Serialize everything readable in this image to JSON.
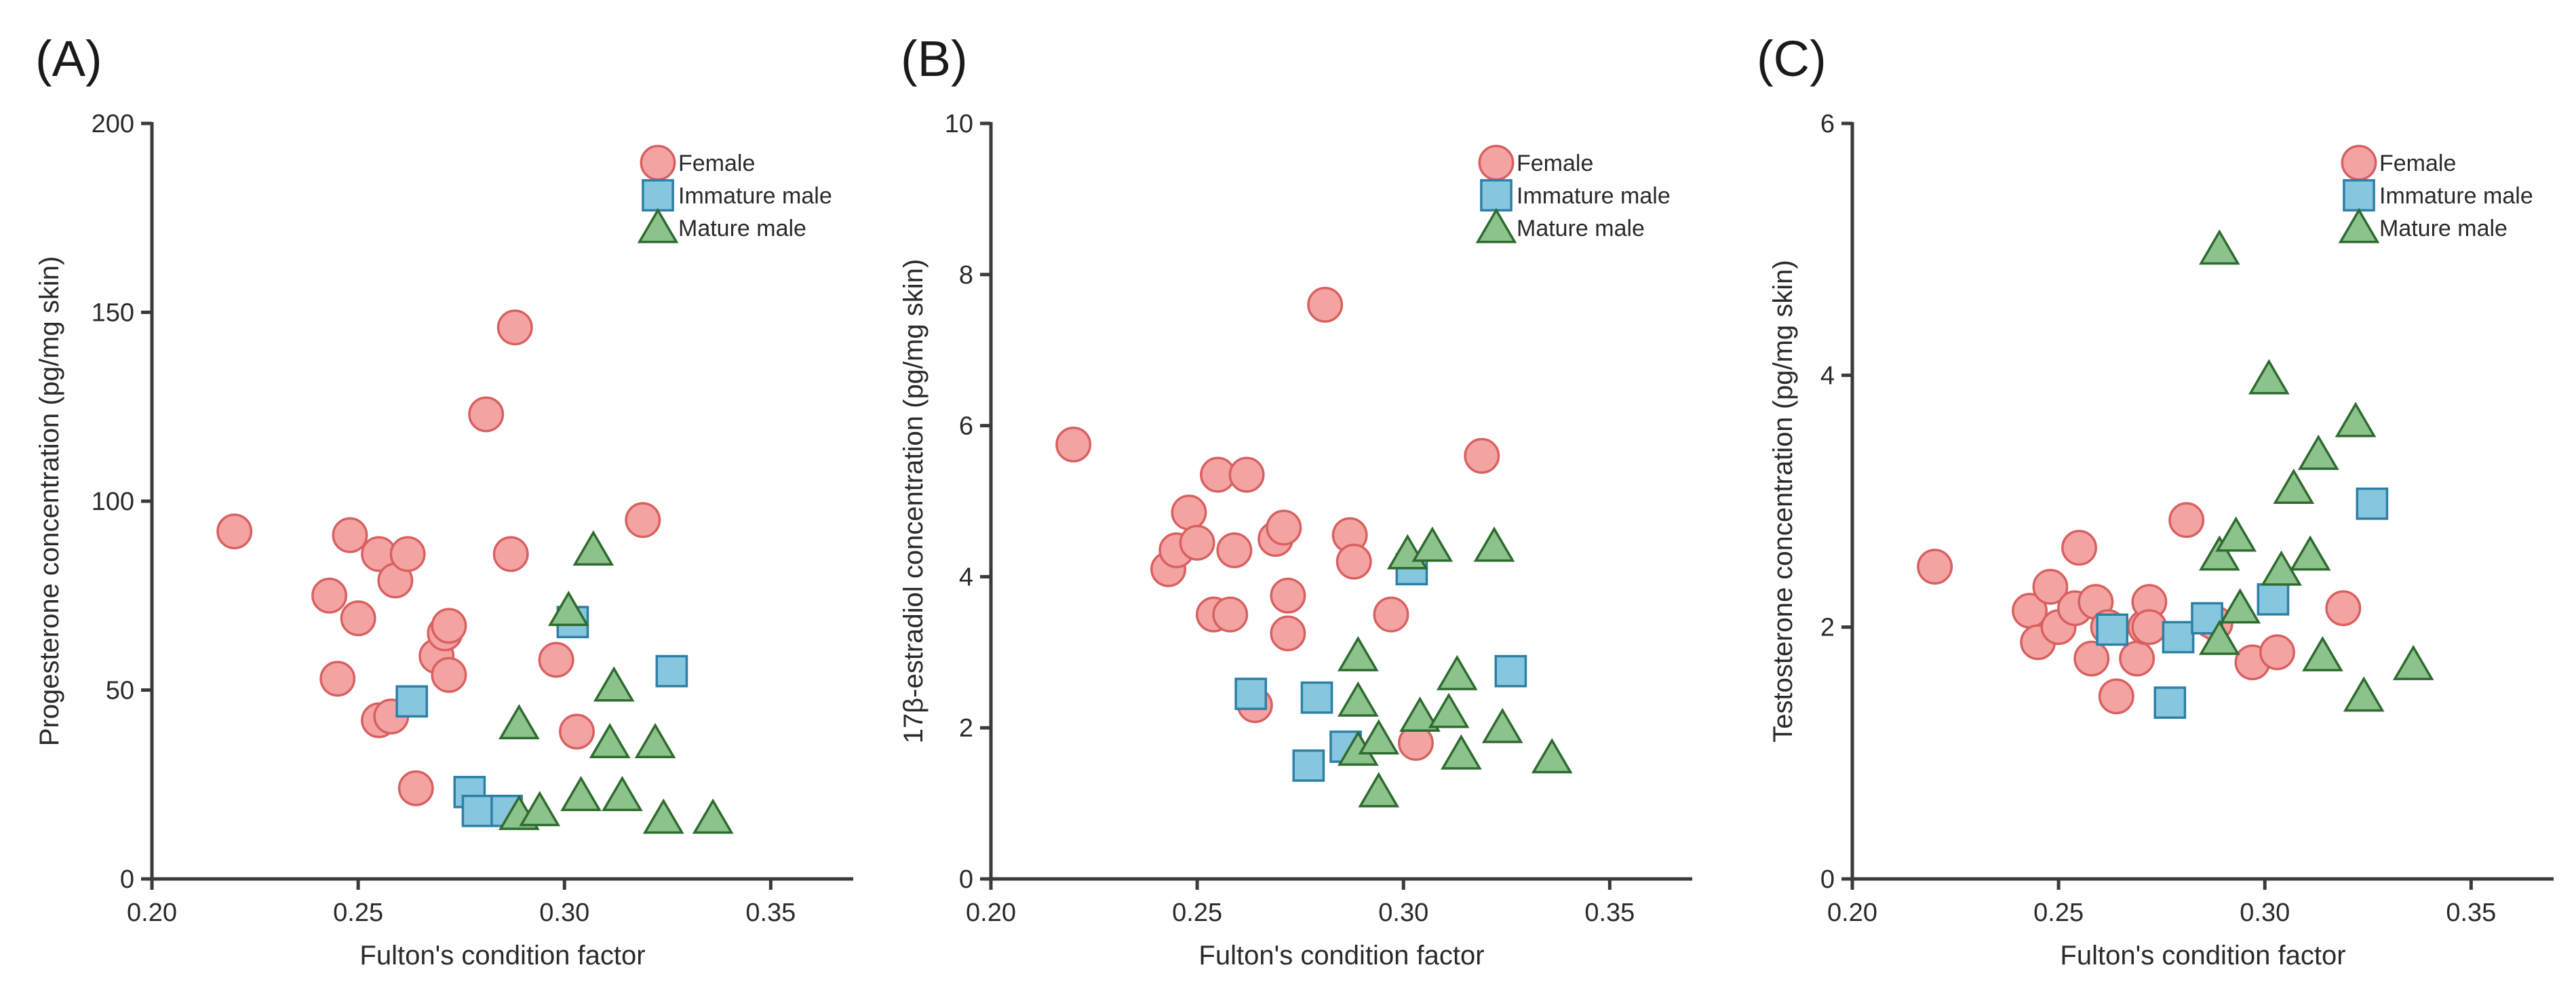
{
  "styles": {
    "Female": {
      "marker": "circle",
      "fill": "#f4a3a3",
      "stroke": "#d96060"
    },
    "Immature male": {
      "marker": "square",
      "fill": "#86c7df",
      "stroke": "#2e7fa6"
    },
    "Mature male": {
      "marker": "triangle",
      "fill": "#8cc28c",
      "stroke": "#2e6b2e"
    }
  },
  "chart_data": [
    {
      "panel": "(A)",
      "type": "scatter",
      "xlabel": "Fulton's condition factor",
      "ylabel": "Progesterone concentration (pg/mg skin)",
      "xlim": [
        0.2,
        0.37
      ],
      "ylim": [
        0,
        200
      ],
      "xticks": [
        "0.20",
        "0.25",
        "0.30",
        "0.35"
      ],
      "yticks": [
        "0",
        "50",
        "100",
        "150",
        "200"
      ],
      "legend": [
        "Female",
        "Immature male",
        "Mature male"
      ],
      "series": [
        {
          "name": "Female",
          "points": [
            [
              0.22,
              92
            ],
            [
              0.243,
              75
            ],
            [
              0.245,
              53
            ],
            [
              0.248,
              91
            ],
            [
              0.25,
              69
            ],
            [
              0.255,
              86
            ],
            [
              0.255,
              42
            ],
            [
              0.258,
              43
            ],
            [
              0.259,
              79
            ],
            [
              0.262,
              86
            ],
            [
              0.264,
              24
            ],
            [
              0.269,
              59
            ],
            [
              0.271,
              65
            ],
            [
              0.272,
              67
            ],
            [
              0.272,
              54
            ],
            [
              0.281,
              123
            ],
            [
              0.287,
              86
            ],
            [
              0.288,
              146
            ],
            [
              0.298,
              58
            ],
            [
              0.303,
              39
            ],
            [
              0.319,
              95
            ]
          ]
        },
        {
          "name": "Immature male",
          "points": [
            [
              0.263,
              47
            ],
            [
              0.277,
              23
            ],
            [
              0.279,
              18
            ],
            [
              0.286,
              18
            ],
            [
              0.302,
              68
            ],
            [
              0.326,
              55
            ]
          ]
        },
        {
          "name": "Mature male",
          "points": [
            [
              0.289,
              41
            ],
            [
              0.289,
              17
            ],
            [
              0.294,
              18
            ],
            [
              0.301,
              71
            ],
            [
              0.304,
              22
            ],
            [
              0.307,
              87
            ],
            [
              0.311,
              36
            ],
            [
              0.312,
              51
            ],
            [
              0.314,
              22
            ],
            [
              0.322,
              36
            ],
            [
              0.324,
              16
            ],
            [
              0.336,
              16
            ]
          ]
        }
      ]
    },
    {
      "panel": "(B)",
      "type": "scatter",
      "xlabel": "Fulton's condition factor",
      "ylabel": "17β-estradiol concentration (pg/mg skin)",
      "xlim": [
        0.2,
        0.37
      ],
      "ylim": [
        0,
        10
      ],
      "xticks": [
        "0.20",
        "0.25",
        "0.30",
        "0.35"
      ],
      "yticks": [
        "0",
        "2",
        "4",
        "6",
        "8",
        "10"
      ],
      "legend": [
        "Female",
        "Immature male",
        "Mature male"
      ],
      "series": [
        {
          "name": "Female",
          "points": [
            [
              0.22,
              5.75
            ],
            [
              0.243,
              4.1
            ],
            [
              0.245,
              4.35
            ],
            [
              0.248,
              4.85
            ],
            [
              0.25,
              4.45
            ],
            [
              0.254,
              3.5
            ],
            [
              0.255,
              5.35
            ],
            [
              0.258,
              3.5
            ],
            [
              0.259,
              4.35
            ],
            [
              0.262,
              5.35
            ],
            [
              0.264,
              2.3
            ],
            [
              0.269,
              4.5
            ],
            [
              0.271,
              4.65
            ],
            [
              0.272,
              3.75
            ],
            [
              0.272,
              3.25
            ],
            [
              0.281,
              7.6
            ],
            [
              0.287,
              4.55
            ],
            [
              0.288,
              4.2
            ],
            [
              0.297,
              3.5
            ],
            [
              0.303,
              1.8
            ],
            [
              0.319,
              5.6
            ]
          ]
        },
        {
          "name": "Immature male",
          "points": [
            [
              0.263,
              2.45
            ],
            [
              0.277,
              1.5
            ],
            [
              0.279,
              2.4
            ],
            [
              0.286,
              1.75
            ],
            [
              0.302,
              4.1
            ],
            [
              0.326,
              2.75
            ]
          ]
        },
        {
          "name": "Mature male",
          "points": [
            [
              0.289,
              2.95
            ],
            [
              0.289,
              2.35
            ],
            [
              0.289,
              1.7
            ],
            [
              0.294,
              1.85
            ],
            [
              0.294,
              1.15
            ],
            [
              0.301,
              4.3
            ],
            [
              0.304,
              2.15
            ],
            [
              0.307,
              4.4
            ],
            [
              0.311,
              2.2
            ],
            [
              0.313,
              2.7
            ],
            [
              0.314,
              1.65
            ],
            [
              0.322,
              4.4
            ],
            [
              0.324,
              2.0
            ],
            [
              0.336,
              1.6
            ]
          ]
        }
      ]
    },
    {
      "panel": "(C)",
      "type": "scatter",
      "xlabel": "Fulton's condition factor",
      "ylabel": "Testosterone concentration (pg/mg skin)",
      "xlim": [
        0.2,
        0.37
      ],
      "ylim": [
        0,
        6
      ],
      "xticks": [
        "0.20",
        "0.25",
        "0.30",
        "0.35"
      ],
      "yticks": [
        "0",
        "2",
        "4",
        "6"
      ],
      "legend": [
        "Female",
        "Immature male",
        "Mature male"
      ],
      "series": [
        {
          "name": "Female",
          "points": [
            [
              0.22,
              2.48
            ],
            [
              0.243,
              2.13
            ],
            [
              0.245,
              1.88
            ],
            [
              0.248,
              2.32
            ],
            [
              0.25,
              2.0
            ],
            [
              0.254,
              2.15
            ],
            [
              0.255,
              2.63
            ],
            [
              0.258,
              1.75
            ],
            [
              0.259,
              2.2
            ],
            [
              0.262,
              2.0
            ],
            [
              0.264,
              1.45
            ],
            [
              0.269,
              1.75
            ],
            [
              0.271,
              2.0
            ],
            [
              0.272,
              2.2
            ],
            [
              0.272,
              2.0
            ],
            [
              0.281,
              2.85
            ],
            [
              0.287,
              2.05
            ],
            [
              0.288,
              2.03
            ],
            [
              0.297,
              1.72
            ],
            [
              0.303,
              1.8
            ],
            [
              0.319,
              2.15
            ]
          ]
        },
        {
          "name": "Immature male",
          "points": [
            [
              0.263,
              1.98
            ],
            [
              0.277,
              1.4
            ],
            [
              0.279,
              1.92
            ],
            [
              0.286,
              2.07
            ],
            [
              0.302,
              2.22
            ],
            [
              0.326,
              2.98
            ]
          ]
        },
        {
          "name": "Mature male",
          "points": [
            [
              0.289,
              5.0
            ],
            [
              0.289,
              2.57
            ],
            [
              0.289,
              1.9
            ],
            [
              0.293,
              2.72
            ],
            [
              0.294,
              2.15
            ],
            [
              0.301,
              3.97
            ],
            [
              0.304,
              2.45
            ],
            [
              0.307,
              3.1
            ],
            [
              0.311,
              2.57
            ],
            [
              0.313,
              3.37
            ],
            [
              0.314,
              1.77
            ],
            [
              0.322,
              3.63
            ],
            [
              0.324,
              1.45
            ],
            [
              0.336,
              1.7
            ]
          ]
        }
      ]
    }
  ]
}
